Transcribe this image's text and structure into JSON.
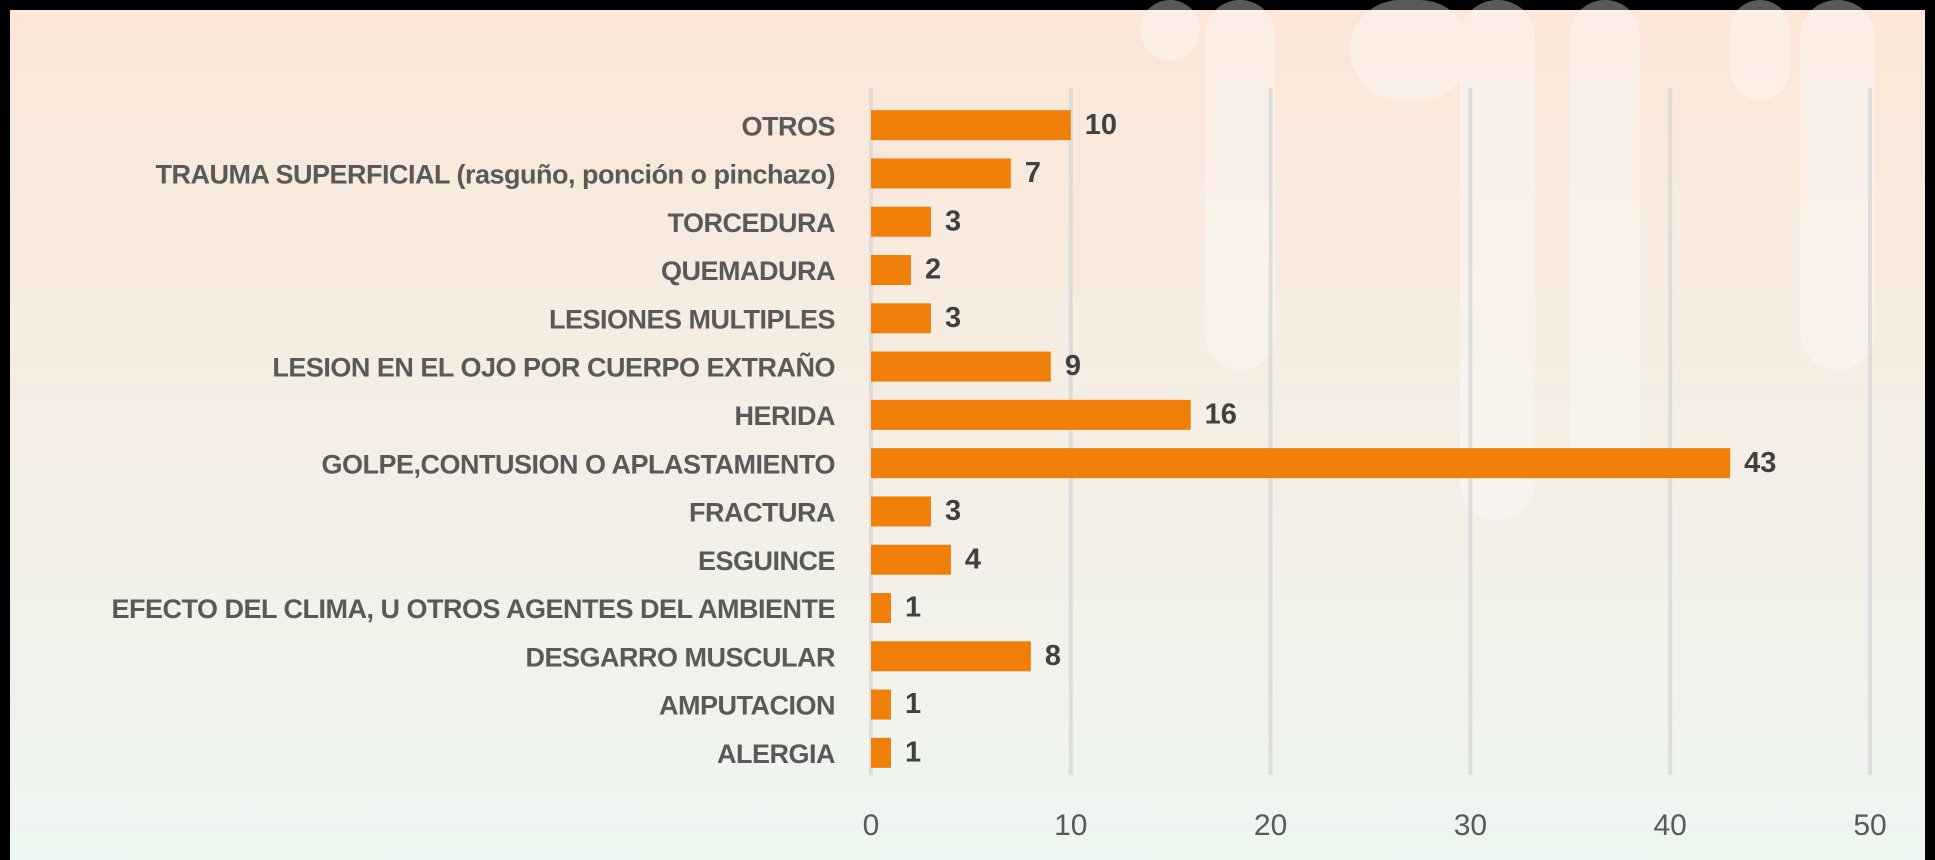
{
  "chart_data": {
    "type": "bar",
    "orientation": "horizontal",
    "categories": [
      "OTROS",
      "TRAUMA SUPERFICIAL (rasguño, ponción o pinchazo)",
      "TORCEDURA",
      "QUEMADURA",
      "LESIONES MULTIPLES",
      "LESION EN EL OJO POR CUERPO EXTRAÑO",
      "HERIDA",
      "GOLPE,CONTUSION O APLASTAMIENTO",
      "FRACTURA",
      "ESGUINCE",
      "EFECTO DEL CLIMA, U OTROS AGENTES DEL AMBIENTE",
      "DESGARRO MUSCULAR",
      "AMPUTACION",
      "ALERGIA"
    ],
    "values": [
      10,
      7,
      3,
      2,
      3,
      9,
      16,
      43,
      3,
      4,
      1,
      8,
      1,
      1
    ],
    "color": "#f07f0a",
    "xlim": [
      0,
      50
    ],
    "xticks": [
      0,
      10,
      20,
      30,
      40,
      50
    ],
    "grid": true
  }
}
